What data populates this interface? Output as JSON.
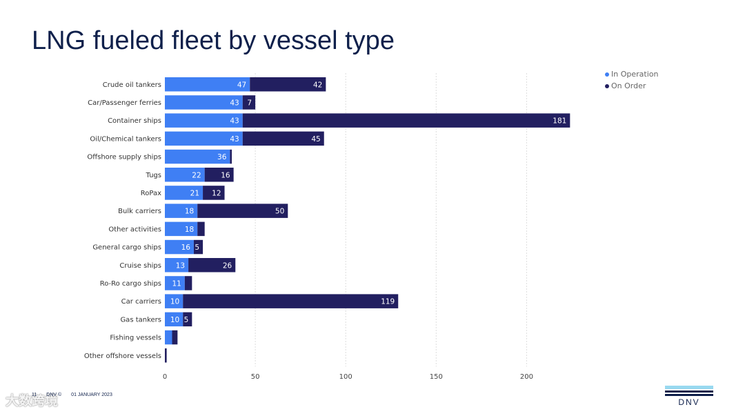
{
  "slide": {
    "title": "LNG fueled fleet by vessel type"
  },
  "footer": {
    "page": "11",
    "copyright": "DNV ©",
    "date": "01 JANUARY 2023"
  },
  "watermark": "大数跨境",
  "logo": {
    "text": "DNV",
    "colors": [
      "#99d9f0",
      "#3f9c35",
      "#0f204b"
    ]
  },
  "colors": {
    "in_operation": "#3f7ff4",
    "on_order": "#221f60",
    "title": "#0f204b"
  },
  "chart_data": {
    "type": "bar",
    "orientation": "horizontal",
    "stacked": true,
    "title": "",
    "xlabel": "",
    "ylabel": "",
    "xlim": [
      0,
      240
    ],
    "x_ticks": [
      0,
      50,
      100,
      150,
      200
    ],
    "grid": true,
    "legend_position": "top-right",
    "categories": [
      "Crude oil tankers",
      "Car/Passenger ferries",
      "Container ships",
      "Oil/Chemical tankers",
      "Offshore supply ships",
      "Tugs",
      "RoPax",
      "Bulk carriers",
      "Other activities",
      "General cargo ships",
      "Cruise ships",
      "Ro-Ro cargo ships",
      "Car carriers",
      "Gas tankers",
      "Fishing vessels",
      "Other offshore vessels"
    ],
    "series": [
      {
        "name": "In Operation",
        "values": [
          47,
          43,
          43,
          43,
          36,
          22,
          21,
          18,
          18,
          16,
          13,
          11,
          10,
          10,
          4,
          0
        ],
        "labels": [
          "47",
          "43",
          "43",
          "43",
          "36",
          "22",
          "21",
          "18",
          "18",
          "16",
          "13",
          "11",
          "10",
          "10",
          "",
          ""
        ]
      },
      {
        "name": "On Order",
        "values": [
          42,
          7,
          181,
          45,
          1,
          16,
          12,
          50,
          4,
          5,
          26,
          4,
          119,
          5,
          3,
          1
        ],
        "labels": [
          "42",
          "7",
          "181",
          "45",
          "",
          "16",
          "12",
          "50",
          "",
          "5",
          "26",
          "",
          "119",
          "5",
          "",
          ""
        ]
      }
    ]
  }
}
